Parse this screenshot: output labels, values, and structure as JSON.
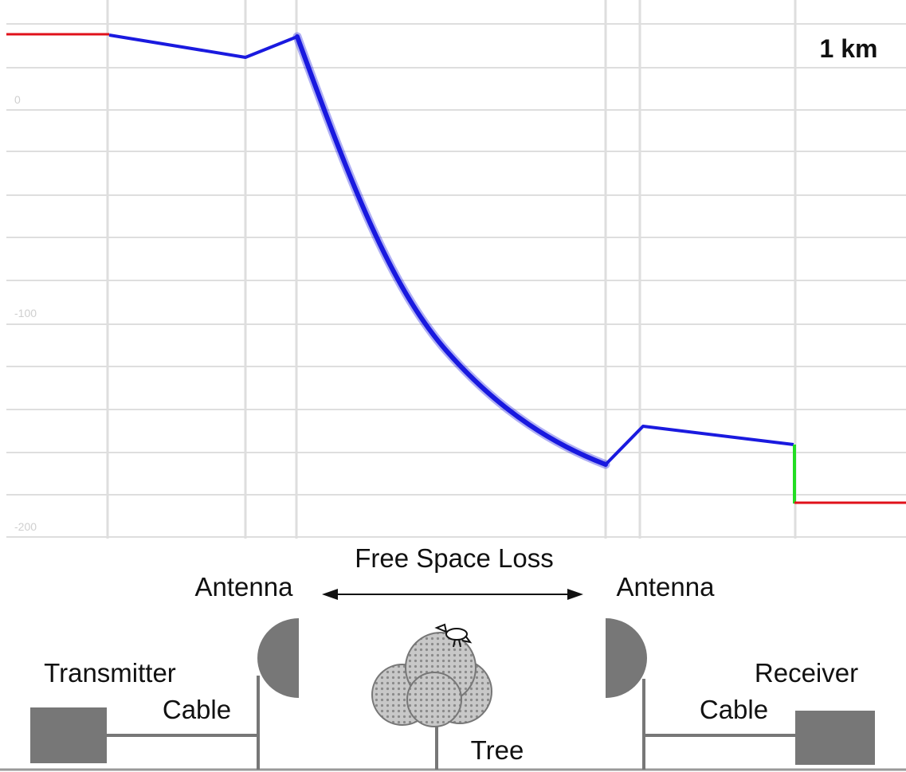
{
  "distance_label": "1 km",
  "faint_axis_ticks": [
    "0",
    "-100",
    "-200"
  ],
  "labels": {
    "free_space_loss": "Free Space Loss",
    "antenna_left": "Antenna",
    "antenna_right": "Antenna",
    "transmitter": "Transmitter",
    "receiver": "Receiver",
    "cable_left": "Cable",
    "cable_right": "Cable",
    "tree": "Tree"
  },
  "colors": {
    "signal_line": "#1a1adf",
    "transmit_power": "#e0101a",
    "receive_power": "#e0101a",
    "fade_margin": "#22dd22",
    "grid": "#dcdcdc",
    "equipment": "#777777"
  },
  "icons": {
    "transmitter": "transmitter-box-icon",
    "receiver": "receiver-box-icon",
    "antenna_left": "dish-antenna-icon",
    "antenna_right": "dish-antenna-icon",
    "tree": "tree-icon",
    "bird": "bird-icon",
    "loss_arrow": "double-arrow-icon"
  }
}
